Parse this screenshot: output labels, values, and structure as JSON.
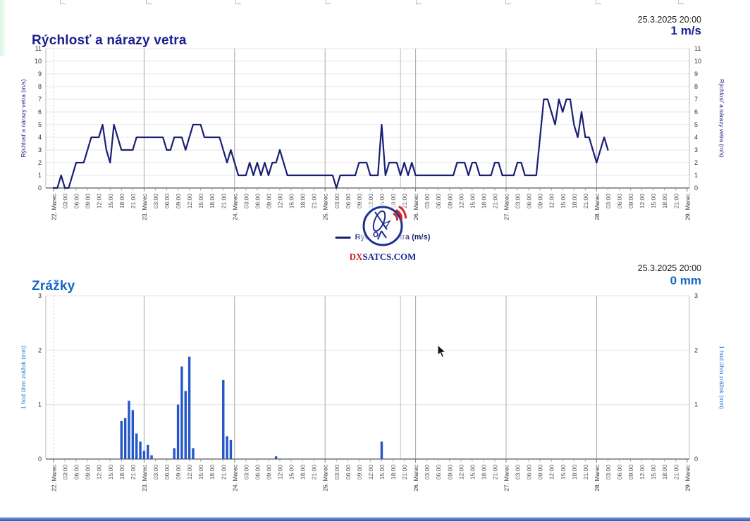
{
  "wind_chart": {
    "title": "Rýchlosť a nárazy vetra",
    "timestamp": "25.3.2025 20:00",
    "current_value": "1 m/s",
    "axis_label": "Rýchlosť a nárazy vetra (m/s)",
    "legend_label": "Rýchlosť vetra (m/s)",
    "line_color": "#1a1f78"
  },
  "rain_chart": {
    "title": "Zrážky",
    "timestamp": "25.3.2025 20:00",
    "current_value": "0 mm",
    "axis_label": "1 hod úhrn zrážok (mm)",
    "bar_color": "#2356c7"
  },
  "logo": {
    "text_dx": "DX",
    "text_rest": "SATCS.COM"
  },
  "x_axis": {
    "day_labels": [
      "22. Marec",
      "23. Marec",
      "24. Marec",
      "25. Marec",
      "26. Marec",
      "27. Marec",
      "28. Marec",
      "29. Marec"
    ],
    "hour_labels": [
      "03:00",
      "06:00",
      "09:00",
      "12:00",
      "15:00",
      "18:00",
      "21:00"
    ],
    "tick_interval_hours": 3
  },
  "chart_data": [
    {
      "type": "line",
      "title": "Rýchlosť a nárazy vetra",
      "ylabel": "Rýchlosť a nárazy vetra (m/s)",
      "ylim": [
        0,
        11
      ],
      "y_tick_step": 1,
      "grid": true,
      "legend_position": "bottom-center",
      "x_start": "22. Marec 00:00",
      "x_end": "29. Marec 00:00",
      "current_time_marker_hour": 92,
      "series": [
        {
          "name": "Rýchlosť vetra (m/s)",
          "interval_hours": 1,
          "values": [
            0,
            0,
            1,
            0,
            0,
            1,
            2,
            2,
            2,
            3,
            4,
            4,
            4,
            5,
            3,
            2,
            5,
            4,
            3,
            3,
            3,
            3,
            4,
            4,
            4,
            4,
            4,
            4,
            4,
            4,
            3,
            3,
            4,
            4,
            4,
            3,
            4,
            5,
            5,
            5,
            4,
            4,
            4,
            4,
            4,
            3,
            2,
            3,
            2,
            1,
            1,
            1,
            2,
            1,
            2,
            1,
            2,
            1,
            2,
            2,
            3,
            2,
            1,
            1,
            1,
            1,
            1,
            1,
            1,
            1,
            1,
            1,
            1,
            1,
            1,
            0,
            1,
            1,
            1,
            1,
            1,
            2,
            2,
            2,
            1,
            1,
            1,
            5,
            1,
            2,
            2,
            2,
            1,
            2,
            1,
            2,
            1,
            1,
            1,
            1,
            1,
            1,
            1,
            1,
            1,
            1,
            1,
            2,
            2,
            2,
            1,
            2,
            2,
            1,
            1,
            1,
            1,
            2,
            2,
            1,
            1,
            1,
            1,
            2,
            2,
            1,
            1,
            1,
            1,
            4,
            7,
            7,
            6,
            5,
            7,
            6,
            7,
            7,
            5,
            4,
            6,
            4,
            4,
            3,
            2,
            3,
            4,
            3
          ]
        }
      ]
    },
    {
      "type": "bar",
      "title": "Zrážky",
      "ylabel": "1 hod úhrn zrážok (mm)",
      "ylim": [
        0,
        3
      ],
      "y_tick_step": 1,
      "grid": true,
      "x_start": "22. Marec 00:00",
      "x_end": "29. Marec 00:00",
      "current_time_marker_hour": 92,
      "points": [
        {
          "hour_offset": 18,
          "value": 0.7
        },
        {
          "hour_offset": 19,
          "value": 0.75
        },
        {
          "hour_offset": 20,
          "value": 1.07
        },
        {
          "hour_offset": 21,
          "value": 0.9
        },
        {
          "hour_offset": 22,
          "value": 0.47
        },
        {
          "hour_offset": 23,
          "value": 0.32
        },
        {
          "hour_offset": 24,
          "value": 0.15
        },
        {
          "hour_offset": 25,
          "value": 0.26
        },
        {
          "hour_offset": 26,
          "value": 0.07
        },
        {
          "hour_offset": 32,
          "value": 0.2
        },
        {
          "hour_offset": 33,
          "value": 1.0
        },
        {
          "hour_offset": 34,
          "value": 1.7
        },
        {
          "hour_offset": 35,
          "value": 1.25
        },
        {
          "hour_offset": 36,
          "value": 1.88
        },
        {
          "hour_offset": 37,
          "value": 0.2
        },
        {
          "hour_offset": 45,
          "value": 1.45
        },
        {
          "hour_offset": 46,
          "value": 0.42
        },
        {
          "hour_offset": 47,
          "value": 0.35
        },
        {
          "hour_offset": 59,
          "value": 0.05
        },
        {
          "hour_offset": 87,
          "value": 0.32
        }
      ]
    }
  ]
}
